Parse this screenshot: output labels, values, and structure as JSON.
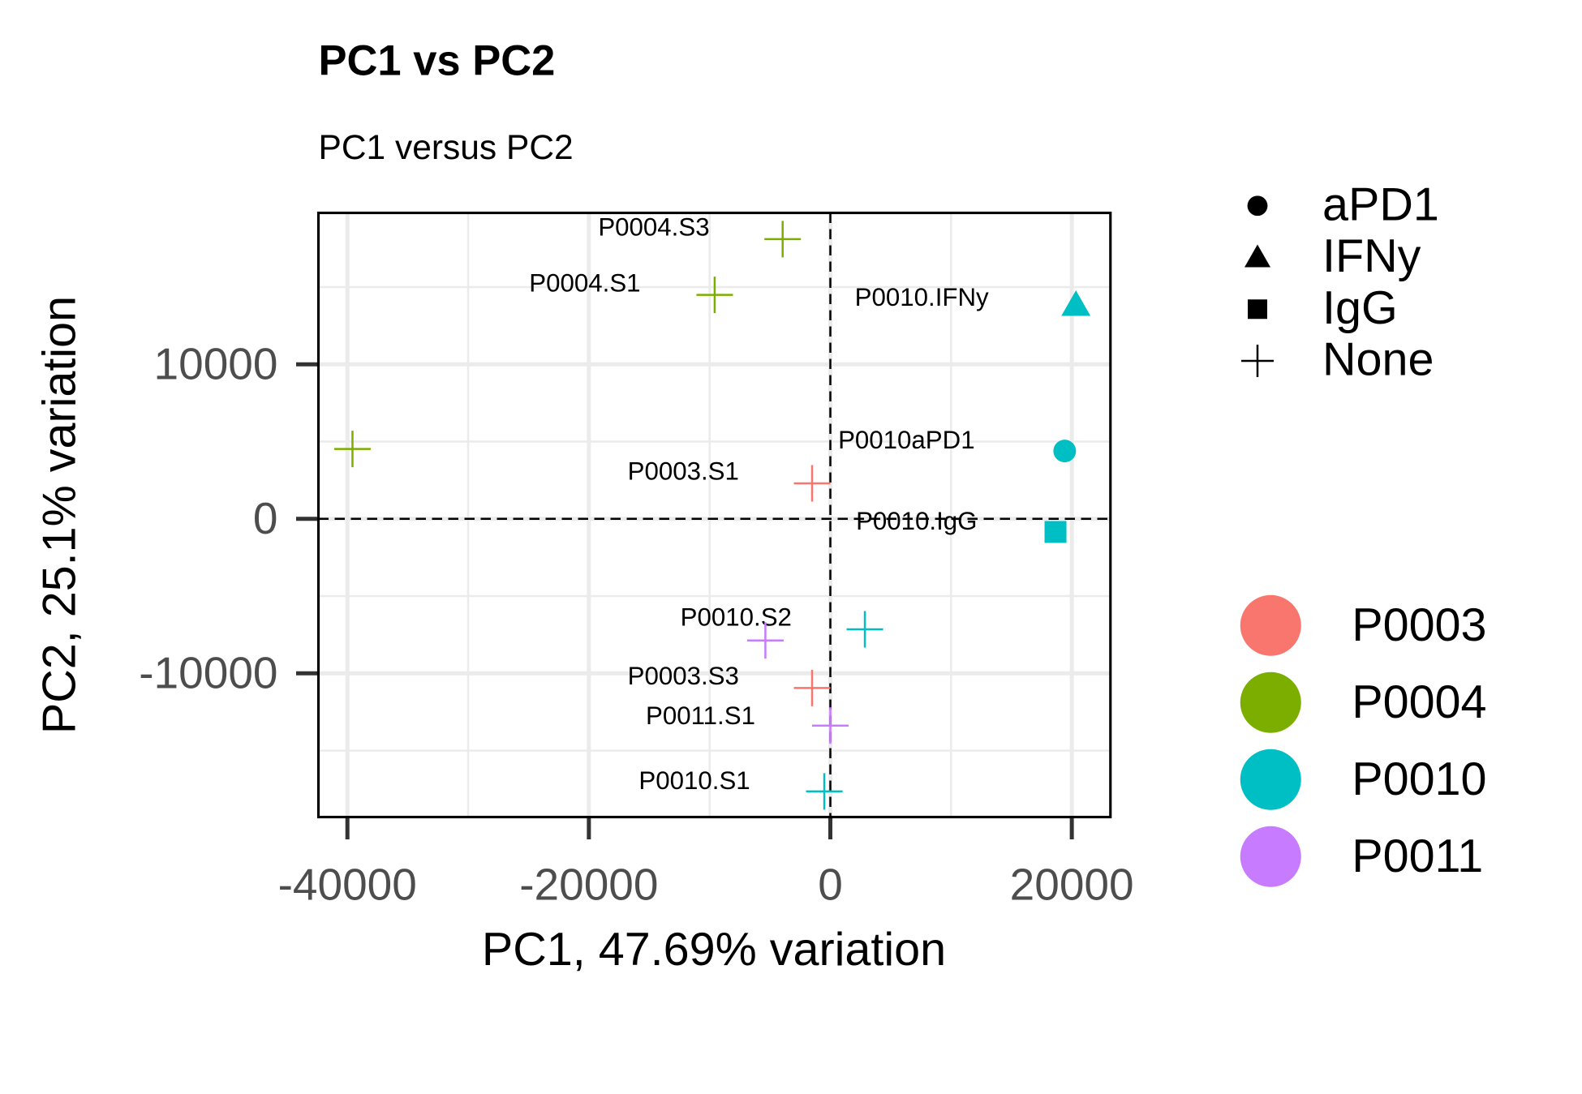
{
  "chart_data": {
    "type": "scatter",
    "title": "PC1 vs PC2",
    "subtitle": "PC1 versus PC2",
    "xlabel": "PC1, 47.69% variation",
    "ylabel": "PC2, 25.1% variation",
    "xlim": [
      -42400,
      23200
    ],
    "ylim": [
      -19300,
      19800
    ],
    "xticks": [
      -40000,
      -20000,
      0,
      20000
    ],
    "yticks": [
      -10000,
      0,
      10000
    ],
    "grid": true,
    "hline": 0,
    "vline": 0,
    "x": [
      -3950,
      -9580,
      -39580,
      20340,
      19410,
      -1510,
      18650,
      2860,
      -5380,
      -1510,
      0,
      -500
    ],
    "y": [
      18100,
      14490,
      4520,
      13840,
      4390,
      2300,
      -850,
      -7150,
      -7870,
      -10950,
      -13380,
      -17640
    ],
    "labels": [
      "P0004.S3",
      "P0004.S1",
      null,
      "P0010.IFNy",
      "P0010aPD1",
      "P0003.S1",
      "P0010.IgG",
      "P0010.S2",
      null,
      "P0003.S3",
      "P0011.S1",
      "P0010.S1"
    ],
    "groups": [
      "P0004",
      "P0004",
      "P0004",
      "P0010",
      "P0010",
      "P0003",
      "P0010",
      "P0010",
      "P0011",
      "P0003",
      "P0011",
      "P0010"
    ],
    "shapes": [
      "None",
      "None",
      "None",
      "IFNy",
      "aPD1",
      "None",
      "IgG",
      "None",
      "None",
      "None",
      "None",
      "None"
    ],
    "shape_legend": [
      "aPD1",
      "IFNy",
      "IgG",
      "None"
    ],
    "color_legend": [
      {
        "name": "P0003",
        "color": "#F8766D"
      },
      {
        "name": "P0004",
        "color": "#7CAE00"
      },
      {
        "name": "P0010",
        "color": "#00BFC4"
      },
      {
        "name": "P0011",
        "color": "#C77CFF"
      }
    ]
  }
}
